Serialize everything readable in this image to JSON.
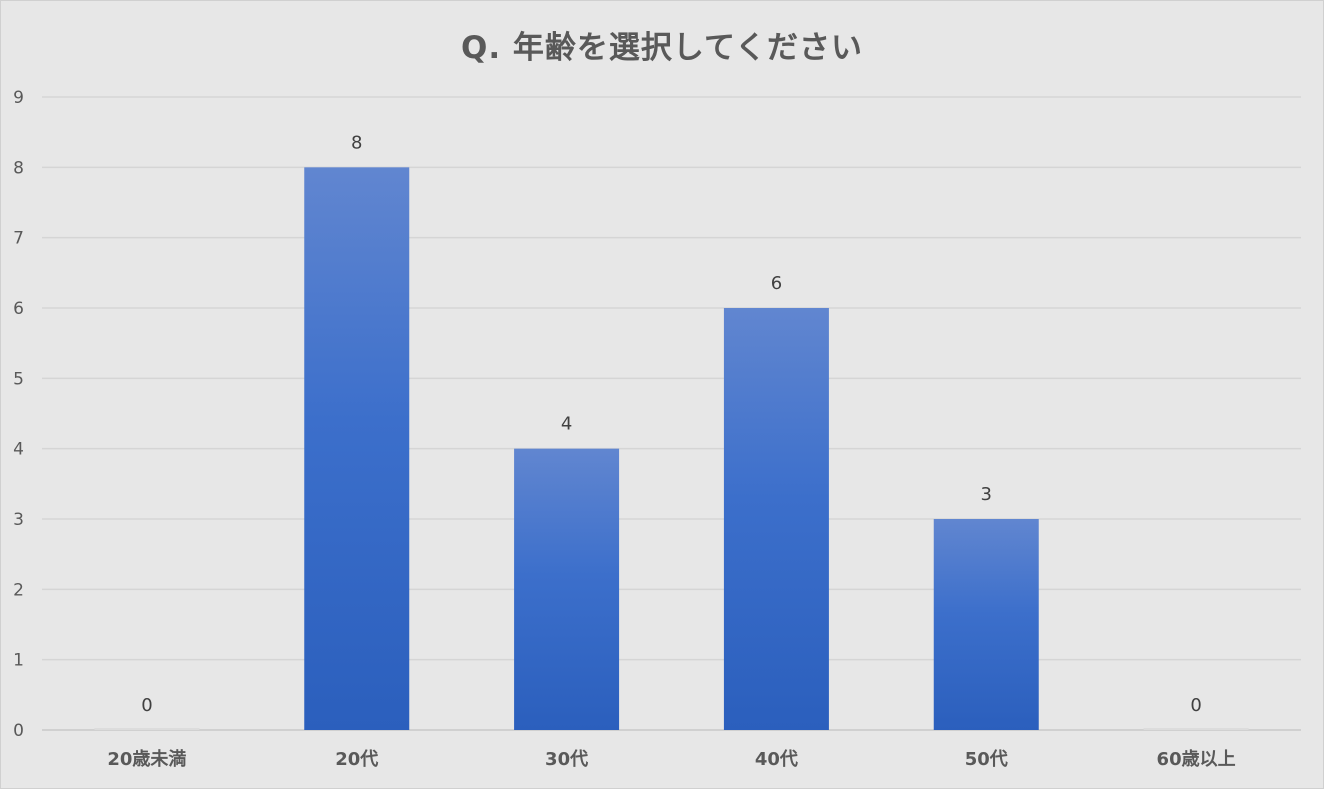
{
  "chart_data": {
    "type": "bar",
    "title": "Q. 年齢を選択してください",
    "categories": [
      "20歳未満",
      "20代",
      "30代",
      "40代",
      "50代",
      "60歳以上"
    ],
    "values": [
      0,
      8,
      4,
      6,
      3,
      0
    ],
    "ylim": [
      0,
      9
    ],
    "yticks": [
      0,
      1,
      2,
      3,
      4,
      5,
      6,
      7,
      8,
      9
    ],
    "grid": true,
    "data_labels": true,
    "bar_color_top": "#6186d0",
    "bar_color_bottom": "#2b5fbd",
    "background": "#e7e7e7"
  }
}
